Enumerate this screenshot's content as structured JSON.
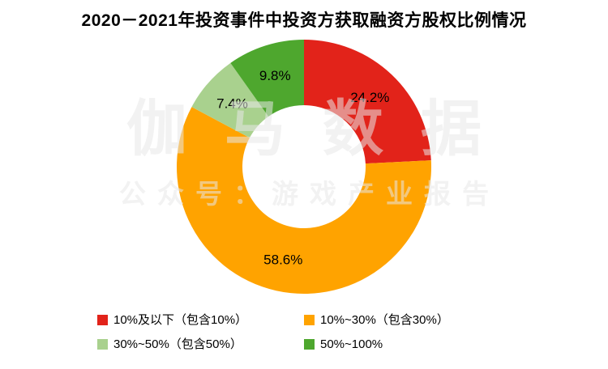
{
  "title": "2020－2021年投资事件中投资方获取融资方股权比例情况",
  "watermark": {
    "line1": "伽马数据",
    "line2": "公众号：游戏产业报告"
  },
  "chart_data": {
    "type": "pie",
    "subtype": "donut",
    "title": "2020－2021年投资事件中投资方获取融资方股权比例情况",
    "direction": "clockwise",
    "start_angle_deg": 0,
    "legend_position": "bottom",
    "slices": [
      {
        "label": "10%及以下（包含10%）",
        "value": 24.2,
        "display": "24.2%",
        "color": "#e2231a"
      },
      {
        "label": "10%~30%（包含30%）",
        "value": 58.6,
        "display": "58.6%",
        "color": "#ffa300"
      },
      {
        "label": "30%~50%（包含50%）",
        "value": 7.4,
        "display": "7.4%",
        "color": "#a9d18e"
      },
      {
        "label": "50%~100%",
        "value": 9.8,
        "display": "9.8%",
        "color": "#4ea72e"
      }
    ]
  },
  "legend": {
    "items": [
      {
        "label": "10%及以下（包含10%）",
        "color": "#e2231a"
      },
      {
        "label": "10%~30%（包含30%）",
        "color": "#ffa300"
      },
      {
        "label": "30%~50%（包含50%）",
        "color": "#a9d18e"
      },
      {
        "label": "50%~100%",
        "color": "#4ea72e"
      }
    ]
  }
}
